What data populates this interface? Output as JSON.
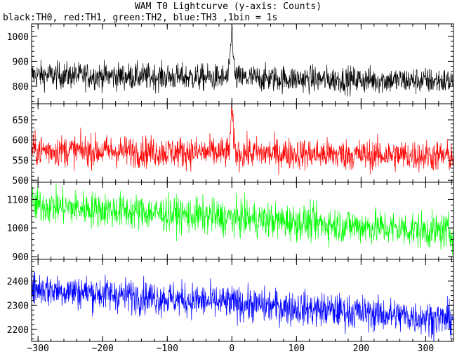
{
  "chart_data": {
    "type": "line",
    "title": "WAM T0 Lightcurve (y-axis: Counts)",
    "subtitle": "black:TH0, red:TH1, green:TH2, blue:TH3 ,1bin = 1s",
    "xlabel": "",
    "xlim": [
      -310,
      343
    ],
    "x_ticks": [
      -300,
      -200,
      -100,
      0,
      100,
      200,
      300
    ],
    "x_tick_labels": [
      "−300",
      "−200",
      "−100",
      "0",
      "100",
      "200",
      "300"
    ],
    "bin_seconds": 1,
    "panels": [
      {
        "series_name": "TH0",
        "color": "#000000",
        "ylim": [
          730,
          1050
        ],
        "y_ticks": [
          800,
          900,
          1000
        ],
        "baseline": [
          [
            -310,
            845
          ],
          [
            343,
            820
          ]
        ],
        "noise_sd": 30,
        "peak": {
          "x": 0,
          "y": 1020,
          "width_s": 3
        }
      },
      {
        "series_name": "TH1",
        "color": "#ff0000",
        "ylim": [
          495,
          690
        ],
        "y_ticks": [
          500,
          550,
          600,
          650
        ],
        "baseline": [
          [
            -310,
            575
          ],
          [
            343,
            560
          ]
        ],
        "noise_sd": 22,
        "peak": {
          "x": 0,
          "y": 660,
          "width_s": 3
        }
      },
      {
        "series_name": "TH2",
        "color": "#00ff00",
        "ylim": [
          890,
          1160
        ],
        "y_ticks": [
          900,
          1000,
          1100
        ],
        "baseline": [
          [
            -310,
            1080
          ],
          [
            343,
            985
          ]
        ],
        "noise_sd": 35,
        "peak": null
      },
      {
        "series_name": "TH3",
        "color": "#0000ff",
        "ylim": [
          2150,
          2490
        ],
        "y_ticks": [
          2200,
          2300,
          2400
        ],
        "baseline": [
          [
            -310,
            2370
          ],
          [
            343,
            2240
          ]
        ],
        "noise_sd": 40,
        "peak": null
      }
    ]
  }
}
